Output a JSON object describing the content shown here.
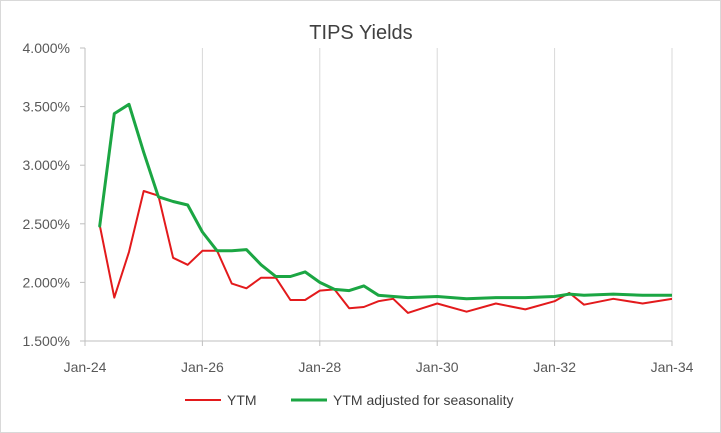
{
  "chart_data": {
    "type": "line",
    "title": "TIPS Yields",
    "xlabel": "",
    "ylabel": "",
    "x_tick_labels": [
      "Jan-24",
      "Jan-26",
      "Jan-28",
      "Jan-30",
      "Jan-32",
      "Jan-34"
    ],
    "x_tick_dates": [
      2024.0,
      2026.0,
      2028.0,
      2030.0,
      2032.0,
      2034.0
    ],
    "xlim": [
      2024.0,
      2034.0
    ],
    "y_tick_labels": [
      "1.500%",
      "2.000%",
      "2.500%",
      "3.000%",
      "3.500%",
      "4.000%"
    ],
    "y_tick_values": [
      1.5,
      2.0,
      2.5,
      3.0,
      3.5,
      4.0
    ],
    "ylim": [
      1.5,
      4.0
    ],
    "y_unit": "%",
    "grid": "vertical",
    "legend_position": "bottom",
    "series": [
      {
        "name": "YTM",
        "color": "#e31a1c",
        "points": [
          [
            2024.25,
            2.49
          ],
          [
            2024.5,
            1.87
          ],
          [
            2024.75,
            2.26
          ],
          [
            2025.0,
            2.78
          ],
          [
            2025.25,
            2.74
          ],
          [
            2025.5,
            2.21
          ],
          [
            2025.75,
            2.15
          ],
          [
            2026.0,
            2.27
          ],
          [
            2026.25,
            2.27
          ],
          [
            2026.5,
            1.99
          ],
          [
            2026.75,
            1.95
          ],
          [
            2027.0,
            2.04
          ],
          [
            2027.25,
            2.04
          ],
          [
            2027.5,
            1.85
          ],
          [
            2027.75,
            1.85
          ],
          [
            2028.0,
            1.93
          ],
          [
            2028.25,
            1.94
          ],
          [
            2028.5,
            1.78
          ],
          [
            2028.75,
            1.79
          ],
          [
            2029.0,
            1.84
          ],
          [
            2029.25,
            1.86
          ],
          [
            2029.5,
            1.74
          ],
          [
            2029.75,
            1.78
          ],
          [
            2030.0,
            1.82
          ],
          [
            2030.5,
            1.75
          ],
          [
            2031.0,
            1.82
          ],
          [
            2031.5,
            1.77
          ],
          [
            2032.0,
            1.84
          ],
          [
            2032.25,
            1.91
          ],
          [
            2032.5,
            1.81
          ],
          [
            2033.0,
            1.86
          ],
          [
            2033.5,
            1.82
          ],
          [
            2034.0,
            1.86
          ],
          [
            2034.1,
            1.865
          ]
        ]
      },
      {
        "name": "YTM adjusted for seasonality",
        "color": "#1ba643",
        "points": [
          [
            2024.25,
            2.48
          ],
          [
            2024.5,
            3.44
          ],
          [
            2024.75,
            3.52
          ],
          [
            2025.0,
            3.11
          ],
          [
            2025.25,
            2.73
          ],
          [
            2025.5,
            2.69
          ],
          [
            2025.75,
            2.66
          ],
          [
            2026.0,
            2.43
          ],
          [
            2026.25,
            2.27
          ],
          [
            2026.5,
            2.27
          ],
          [
            2026.75,
            2.28
          ],
          [
            2027.0,
            2.15
          ],
          [
            2027.25,
            2.05
          ],
          [
            2027.5,
            2.05
          ],
          [
            2027.75,
            2.09
          ],
          [
            2028.0,
            2.0
          ],
          [
            2028.25,
            1.94
          ],
          [
            2028.5,
            1.93
          ],
          [
            2028.75,
            1.97
          ],
          [
            2029.0,
            1.89
          ],
          [
            2029.5,
            1.87
          ],
          [
            2030.0,
            1.88
          ],
          [
            2030.5,
            1.86
          ],
          [
            2031.0,
            1.87
          ],
          [
            2031.5,
            1.87
          ],
          [
            2032.0,
            1.88
          ],
          [
            2032.25,
            1.9
          ],
          [
            2032.5,
            1.89
          ],
          [
            2033.0,
            1.9
          ],
          [
            2033.5,
            1.89
          ],
          [
            2034.0,
            1.89
          ],
          [
            2034.1,
            1.89
          ]
        ]
      }
    ]
  }
}
